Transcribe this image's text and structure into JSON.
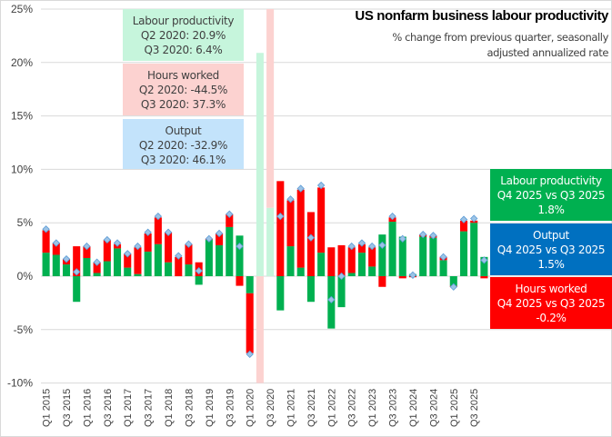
{
  "chart_data": {
    "type": "bar",
    "subtype": "stacked-bar-with-markers",
    "title": "US nonfarm business  labour productivity",
    "subtitle": "% change from previous quarter, seasonally adjusted annualized rate",
    "xlabel": "",
    "ylabel": "",
    "ylim": [
      -10,
      25
    ],
    "yticks": [
      25,
      20,
      15,
      10,
      5,
      0,
      -5,
      -10
    ],
    "ytick_labels": [
      "25%",
      "20%",
      "15%",
      "10%",
      "5%",
      "0%",
      "-5%",
      "-10%"
    ],
    "grid": true,
    "categories": [
      "Q1 2015",
      "Q2 2015",
      "Q3 2015",
      "Q4 2015",
      "Q1 2016",
      "Q2 2016",
      "Q3 2016",
      "Q4 2016",
      "Q1 2017",
      "Q2 2017",
      "Q3 2017",
      "Q4 2017",
      "Q1 2018",
      "Q2 2018",
      "Q3 2018",
      "Q4 2018",
      "Q1 2019",
      "Q2 2019",
      "Q3 2019",
      "Q4 2019",
      "Q1 2020",
      "Q2 2020",
      "Q3 2020",
      "Q4 2020",
      "Q1 2021",
      "Q2 2021",
      "Q3 2021",
      "Q4 2021",
      "Q1 2022",
      "Q2 2022",
      "Q3 2022",
      "Q4 2022",
      "Q1 2023",
      "Q2 2023",
      "Q3 2023",
      "Q4 2023",
      "Q1 2024",
      "Q2 2024",
      "Q3 2024",
      "Q4 2024",
      "Q1 2025",
      "Q2 2025",
      "Q3 2025",
      "Q4 2025"
    ],
    "xtick_labels": [
      "Q1 2015",
      "Q3 2015",
      "Q1 2016",
      "Q3 2016",
      "Q1 2017",
      "Q3 2017",
      "Q1 2018",
      "Q3 2018",
      "Q1 2019",
      "Q3 2019",
      "Q1 2020",
      "Q3 2020",
      "Q1 2021",
      "Q3 2021",
      "Q1 2022",
      "Q3 2022",
      "Q1 2023",
      "Q3 2023",
      "Q1 2024",
      "Q3 2024",
      "Q1 2025",
      "Q3 2025"
    ],
    "series": [
      {
        "name": "Labour productivity",
        "kind": "bar",
        "color": "#00b050",
        "values": [
          2.2,
          2.0,
          1.1,
          -2.4,
          1.7,
          0.3,
          1.4,
          2.6,
          0.8,
          0.2,
          2.3,
          3.0,
          1.3,
          0.0,
          1.1,
          -0.8,
          3.4,
          2.9,
          4.6,
          3.8,
          -1.6,
          20.9,
          6.4,
          -3.2,
          2.8,
          0.8,
          -2.4,
          2.2,
          -4.9,
          -2.9,
          0.3,
          2.2,
          0.9,
          3.9,
          5.1,
          3.7,
          0.2,
          3.7,
          3.6,
          1.5,
          -0.9,
          4.2,
          5.0,
          1.8
        ]
      },
      {
        "name": "Hours worked",
        "kind": "bar",
        "color": "#ff0000",
        "values": [
          2.1,
          1.1,
          0.5,
          2.8,
          1.1,
          1.0,
          2.0,
          0.4,
          1.3,
          2.5,
          1.7,
          2.5,
          2.8,
          1.8,
          1.9,
          1.3,
          0.1,
          1.1,
          1.2,
          -0.9,
          -5.6,
          -44.5,
          37.3,
          8.9,
          4.3,
          7.3,
          6.0,
          6.1,
          2.7,
          2.9,
          2.4,
          0.8,
          1.8,
          -1.0,
          0.4,
          -0.2,
          -0.1,
          0.2,
          0.2,
          0.3,
          -0.1,
          1.0,
          0.2,
          -0.2
        ]
      },
      {
        "name": "Output",
        "kind": "marker",
        "color": "#9dc3e6",
        "values": [
          4.4,
          3.1,
          1.6,
          0.4,
          2.8,
          1.3,
          3.4,
          3.1,
          2.1,
          2.8,
          4.1,
          5.6,
          4.1,
          1.9,
          3.0,
          0.5,
          3.5,
          4.0,
          5.8,
          2.8,
          -7.3,
          -32.9,
          46.1,
          5.6,
          7.2,
          8.2,
          3.6,
          8.5,
          -2.2,
          0.0,
          2.8,
          3.1,
          2.8,
          2.9,
          5.6,
          3.5,
          0.1,
          3.9,
          3.8,
          1.8,
          -1.0,
          5.3,
          5.4,
          1.5
        ]
      }
    ],
    "outlier_quarters": [
      "Q2 2020",
      "Q3 2020"
    ],
    "annotations": {
      "covid": [
        {
          "lines": [
            "Labour productivity",
            "Q2 2020: 20.9%",
            "Q3 2020: 6.4%"
          ],
          "color": "#c6f5dc"
        },
        {
          "lines": [
            "Hours worked",
            "Q2 2020: -44.5%",
            "Q3 2020: 37.3%"
          ],
          "color": "#fcd2d0"
        },
        {
          "lines": [
            "Output",
            "Q2 2020: -32.9%",
            "Q3 2020: 46.1%"
          ],
          "color": "#c3e3fb"
        }
      ],
      "latest": [
        {
          "lines": [
            "Labour productivity",
            "Q4 2025 vs Q3 2025",
            "1.8%"
          ],
          "color": "#00b050"
        },
        {
          "lines": [
            "Output",
            "Q4 2025 vs Q3 2025",
            "1.5%"
          ],
          "color": "#0070c0"
        },
        {
          "lines": [
            "Hours worked",
            "Q4 2025 vs Q3 2025",
            "-0.2%"
          ],
          "color": "#ff0000"
        }
      ]
    },
    "legend": "none (annotation boxes used)"
  }
}
